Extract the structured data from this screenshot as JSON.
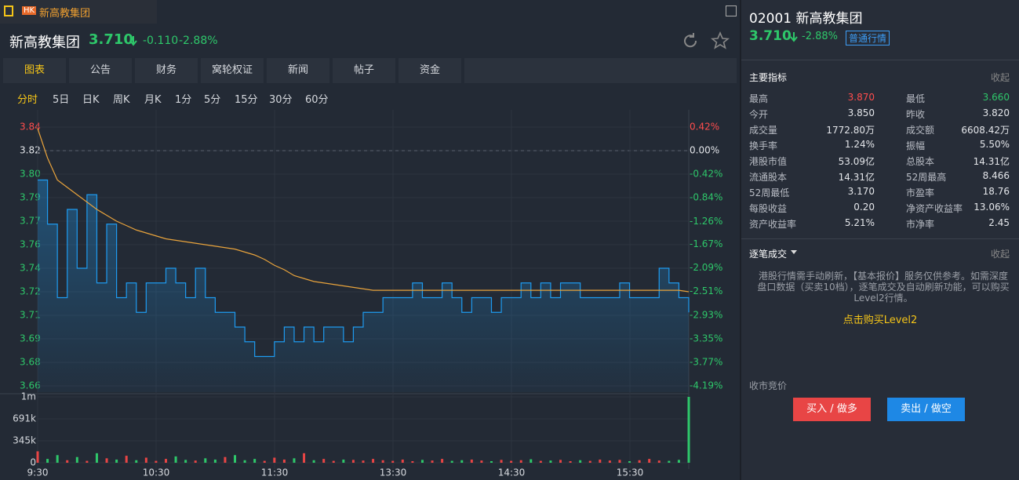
{
  "tab": {
    "badge": "HK",
    "title": "新高教集团"
  },
  "header": {
    "name": "新高教集团",
    "price": "3.710",
    "change": "-0.110",
    "pct": "-2.88%"
  },
  "tabs": [
    "图表",
    "公告",
    "财务",
    "窝轮权证",
    "新闻",
    "帖子",
    "资金"
  ],
  "periods": [
    "分时",
    "5日",
    "日K",
    "周K",
    "月K",
    "1分",
    "5分",
    "15分",
    "30分",
    "60分"
  ],
  "chart": {
    "type": "line",
    "ylim": [
      3.66,
      3.836
    ],
    "yticks": [
      {
        "value": 3.836,
        "label": "3.84"
      },
      {
        "value": 3.82,
        "label": "3.82"
      },
      {
        "value": 3.804,
        "label": "3.80"
      },
      {
        "value": 3.788,
        "label": "3.79"
      },
      {
        "value": 3.772,
        "label": "3.77"
      },
      {
        "value": 3.756,
        "label": "3.76"
      },
      {
        "value": 3.74,
        "label": "3.74"
      },
      {
        "value": 3.724,
        "label": "3.72"
      },
      {
        "value": 3.708,
        "label": "3.71"
      },
      {
        "value": 3.692,
        "label": "3.69"
      },
      {
        "value": 3.676,
        "label": "3.68"
      },
      {
        "value": 3.66,
        "label": "3.66"
      }
    ],
    "y2lim": [
      -4.19,
      0.42
    ],
    "y2ticks": [
      {
        "value": 0.42,
        "label": "0.42%"
      },
      {
        "value": 0,
        "label": "0.00%"
      },
      {
        "value": -0.42,
        "label": "-0.42%"
      },
      {
        "value": -0.84,
        "label": "-0.84%"
      },
      {
        "value": -1.26,
        "label": "-1.26%"
      },
      {
        "value": -1.67,
        "label": "-1.67%"
      },
      {
        "value": -2.09,
        "label": "-2.09%"
      },
      {
        "value": -2.51,
        "label": "-2.51%"
      },
      {
        "value": -2.93,
        "label": "-2.93%"
      },
      {
        "value": -3.35,
        "label": "-3.35%"
      },
      {
        "value": -3.77,
        "label": "-3.77%"
      },
      {
        "value": -4.19,
        "label": "-4.19%"
      }
    ],
    "xticks": [
      "9:30",
      "10:30",
      "11:30",
      "13:30",
      "14:30",
      "15:30"
    ],
    "series": [
      {
        "name": "price",
        "color": "#1e9bf0",
        "values": [
          3.8,
          3.77,
          3.72,
          3.78,
          3.74,
          3.79,
          3.73,
          3.77,
          3.72,
          3.73,
          3.71,
          3.73,
          3.73,
          3.74,
          3.73,
          3.72,
          3.74,
          3.72,
          3.71,
          3.71,
          3.7,
          3.69,
          3.68,
          3.68,
          3.69,
          3.7,
          3.69,
          3.7,
          3.69,
          3.7,
          3.7,
          3.69,
          3.7,
          3.71,
          3.71,
          3.72,
          3.72,
          3.72,
          3.73,
          3.72,
          3.72,
          3.73,
          3.72,
          3.71,
          3.72,
          3.72,
          3.71,
          3.72,
          3.72,
          3.73,
          3.72,
          3.73,
          3.72,
          3.73,
          3.73,
          3.72,
          3.72,
          3.72,
          3.72,
          3.73,
          3.72,
          3.72,
          3.72,
          3.74,
          3.73,
          3.72,
          3.71
        ]
      },
      {
        "name": "average",
        "color": "#e8a33c",
        "values": [
          3.835,
          3.815,
          3.8,
          3.795,
          3.79,
          3.785,
          3.78,
          3.776,
          3.772,
          3.769,
          3.766,
          3.764,
          3.762,
          3.76,
          3.759,
          3.758,
          3.757,
          3.756,
          3.755,
          3.754,
          3.753,
          3.751,
          3.749,
          3.746,
          3.742,
          3.739,
          3.735,
          3.733,
          3.731,
          3.73,
          3.729,
          3.728,
          3.727,
          3.726,
          3.725,
          3.725,
          3.725,
          3.725,
          3.725,
          3.725,
          3.725,
          3.725,
          3.725,
          3.725,
          3.725,
          3.725,
          3.725,
          3.725,
          3.725,
          3.725,
          3.725,
          3.725,
          3.725,
          3.725,
          3.725,
          3.725,
          3.725,
          3.725,
          3.725,
          3.725,
          3.725,
          3.725,
          3.725,
          3.725,
          3.725,
          3.725,
          3.724
        ]
      }
    ],
    "volume": {
      "ylim": [
        0,
        1036000
      ],
      "yticks": [
        {
          "value": 1036000,
          "label": "1m"
        },
        {
          "value": 691000,
          "label": "691k"
        },
        {
          "value": 345000,
          "label": "345k"
        },
        0
      ],
      "up_color": "#e84545",
      "down_color": "#2ec76a",
      "values": [
        180000,
        60000,
        120000,
        40000,
        90000,
        30000,
        150000,
        70000,
        50000,
        110000,
        40000,
        80000,
        30000,
        60000,
        100000,
        45000,
        35000,
        70000,
        50000,
        90000,
        120000,
        40000,
        60000,
        30000,
        80000,
        50000,
        70000,
        150000,
        40000,
        60000,
        30000,
        50000,
        45000,
        35000,
        60000,
        40000,
        30000,
        50000,
        25000,
        45000,
        35000,
        60000,
        30000,
        40000,
        50000,
        35000,
        25000,
        45000,
        30000,
        40000,
        55000,
        30000,
        35000,
        45000,
        25000,
        40000,
        30000,
        50000,
        35000,
        45000,
        25000,
        40000,
        60000,
        35000,
        30000,
        45000,
        1036000
      ]
    }
  },
  "side": {
    "title": "02001 新高教集团",
    "price": "3.710",
    "pct": "-2.88%",
    "badge": "普通行情",
    "indicators": {
      "title": "主要指标",
      "collapse": "收起",
      "rows": [
        [
          {
            "label": "最高",
            "value": "3.870"
          },
          {
            "label": "最低",
            "value": "3.660"
          }
        ],
        [
          {
            "label": "今开",
            "value": "3.850"
          },
          {
            "label": "昨收",
            "value": "3.820"
          }
        ],
        [
          {
            "label": "成交量",
            "value": "1772.80万"
          },
          {
            "label": "成交额",
            "value": "6608.42万"
          }
        ],
        [
          {
            "label": "换手率",
            "value": "1.24%"
          },
          {
            "label": "振幅",
            "value": "5.50%"
          }
        ],
        [
          {
            "label": "港股市值",
            "value": "53.09亿"
          },
          {
            "label": "总股本",
            "value": "14.31亿"
          }
        ],
        [
          {
            "label": "流通股本",
            "value": "14.31亿"
          },
          {
            "label": "52周最高",
            "value": "8.466"
          }
        ],
        [
          {
            "label": "52周最低",
            "value": "3.170"
          },
          {
            "label": "市盈率",
            "value": "18.76"
          }
        ],
        [
          {
            "label": "每股收益",
            "value": "0.20"
          },
          {
            "label": "净资产收益率",
            "value": "13.06%"
          }
        ],
        [
          {
            "label": "资产收益率",
            "value": "5.21%"
          },
          {
            "label": "市净率",
            "value": "2.45"
          }
        ]
      ]
    },
    "ticks": {
      "title": "逐笔成交",
      "collapse": "收起",
      "notice": "港股行情需手动刷新，【基本报价】服务仅供参考。如需深度盘口数据（买卖10档），逐笔成交及自动刷新功能，可以购买Level2行情。",
      "link": "点击购买Level2"
    },
    "auction": "收市竞价",
    "buy": "买入 / 做多",
    "sell": "卖出 / 做空"
  }
}
